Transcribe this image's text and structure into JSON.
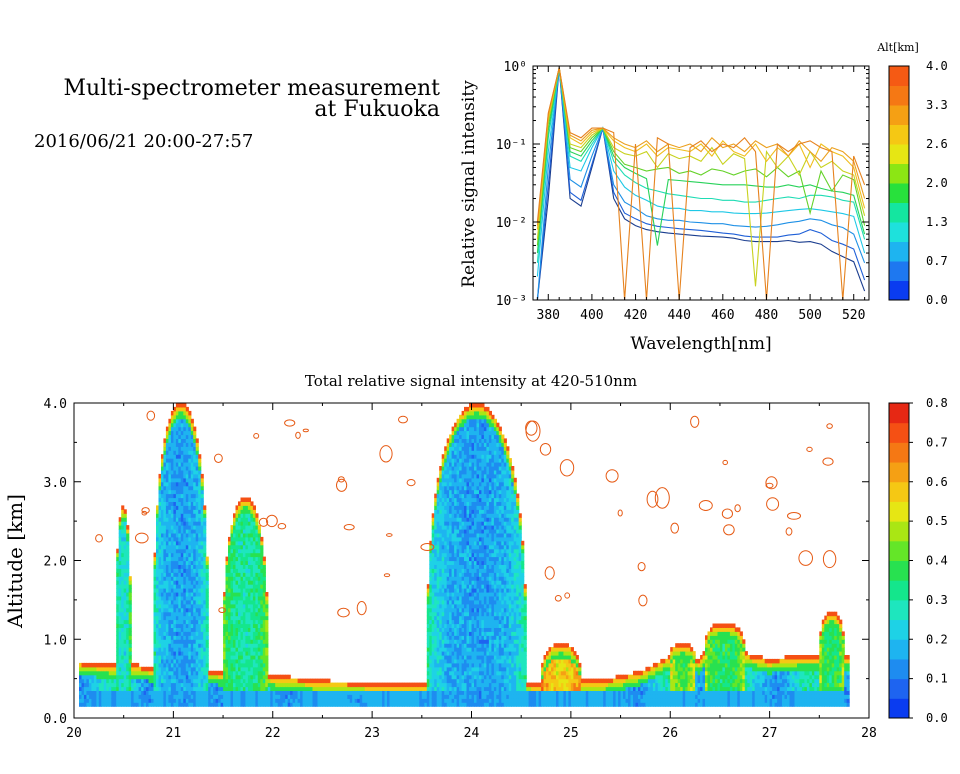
{
  "header": {
    "title_line1": "Multi-spectrometer measurement",
    "title_line2": "at Fukuoka",
    "datetime": "2016/06/21 20:00-27:57"
  },
  "chart_data": [
    {
      "type": "line",
      "title": "",
      "xlabel": "Wavelength[nm]",
      "ylabel": "Relative signal intensity",
      "xlim": [
        373,
        527
      ],
      "ylim": [
        0.001,
        1
      ],
      "yscale": "log",
      "xticks": [
        380,
        400,
        420,
        440,
        460,
        480,
        500,
        520
      ],
      "ytick_labels": [
        "10⁻³",
        "10⁻²",
        "10⁻¹",
        "10⁰"
      ],
      "grid": false,
      "colorbar": {
        "title": "Alt[km]",
        "ticks": [
          "0.0",
          "0.7",
          "1.3",
          "2.0",
          "2.6",
          "3.3",
          "4.0"
        ],
        "colors": [
          "#0A3CF0",
          "#1E78F0",
          "#1EB4F0",
          "#1EE1DC",
          "#14E6A0",
          "#28E13C",
          "#8CE614",
          "#E6E614",
          "#F5C814",
          "#F5A014",
          "#F57814",
          "#F55A14"
        ]
      },
      "wavelengths": [
        375,
        380,
        385,
        390,
        395,
        400,
        405,
        410,
        415,
        420,
        425,
        430,
        435,
        440,
        445,
        450,
        455,
        460,
        465,
        470,
        475,
        480,
        485,
        490,
        495,
        500,
        505,
        510,
        515,
        520,
        525
      ],
      "series": [
        {
          "alt": 0.2,
          "color": "#1A3D8F",
          "values": [
            0.001,
            0.02,
            0.95,
            0.02,
            0.016,
            0.05,
            0.16,
            0.02,
            0.011,
            0.009,
            0.008,
            0.0075,
            0.0072,
            0.007,
            0.0068,
            0.0066,
            0.0065,
            0.0064,
            0.0062,
            0.0058,
            0.0056,
            0.0056,
            0.0056,
            0.0058,
            0.0055,
            0.0056,
            0.0052,
            0.0042,
            0.0036,
            0.0031,
            0.0013
          ]
        },
        {
          "alt": 0.4,
          "color": "#1E5FD7",
          "values": [
            0.001,
            0.03,
            0.95,
            0.024,
            0.019,
            0.055,
            0.16,
            0.024,
            0.013,
            0.011,
            0.0095,
            0.0088,
            0.0085,
            0.0082,
            0.008,
            0.0078,
            0.0075,
            0.0072,
            0.007,
            0.0066,
            0.0064,
            0.0064,
            0.0064,
            0.0068,
            0.007,
            0.008,
            0.0072,
            0.0058,
            0.0052,
            0.0045,
            0.0018
          ]
        },
        {
          "alt": 0.7,
          "color": "#1E90E6",
          "values": [
            0.001,
            0.05,
            0.95,
            0.035,
            0.028,
            0.07,
            0.16,
            0.03,
            0.018,
            0.015,
            0.012,
            0.011,
            0.0105,
            0.0105,
            0.01,
            0.0098,
            0.0095,
            0.0095,
            0.009,
            0.0088,
            0.0086,
            0.0088,
            0.0092,
            0.0098,
            0.0102,
            0.011,
            0.0105,
            0.0092,
            0.0085,
            0.007,
            0.003
          ]
        },
        {
          "alt": 1.0,
          "color": "#1EC8E6",
          "values": [
            0.002,
            0.08,
            0.95,
            0.05,
            0.045,
            0.09,
            0.16,
            0.045,
            0.028,
            0.022,
            0.019,
            0.016,
            0.015,
            0.015,
            0.014,
            0.014,
            0.0135,
            0.0135,
            0.013,
            0.0128,
            0.0128,
            0.013,
            0.0135,
            0.014,
            0.0145,
            0.0148,
            0.0142,
            0.0135,
            0.0128,
            0.0118,
            0.004
          ]
        },
        {
          "alt": 1.3,
          "color": "#1EDCB4",
          "values": [
            0.003,
            0.12,
            0.95,
            0.07,
            0.06,
            0.1,
            0.16,
            0.06,
            0.04,
            0.032,
            0.027,
            0.025,
            0.023,
            0.022,
            0.021,
            0.02,
            0.02,
            0.019,
            0.019,
            0.018,
            0.018,
            0.019,
            0.02,
            0.021,
            0.02,
            0.022,
            0.022,
            0.021,
            0.019,
            0.018,
            0.006
          ]
        },
        {
          "alt": 1.7,
          "color": "#28D25A",
          "values": [
            0.004,
            0.15,
            0.95,
            0.08,
            0.07,
            0.11,
            0.16,
            0.07,
            0.05,
            0.042,
            0.036,
            0.005,
            0.035,
            0.034,
            0.033,
            0.032,
            0.031,
            0.03,
            0.03,
            0.03,
            0.029,
            0.028,
            0.028,
            0.03,
            0.028,
            0.03,
            0.027,
            0.025,
            0.024,
            0.022,
            0.007
          ]
        },
        {
          "alt": 2.1,
          "color": "#64D228",
          "values": [
            0.005,
            0.18,
            0.95,
            0.09,
            0.08,
            0.12,
            0.16,
            0.08,
            0.055,
            0.05,
            0.045,
            0.048,
            0.05,
            0.042,
            0.045,
            0.04,
            0.048,
            0.045,
            0.04,
            0.045,
            0.048,
            0.038,
            0.05,
            0.038,
            0.045,
            0.013,
            0.045,
            0.025,
            0.04,
            0.035,
            0.009
          ]
        },
        {
          "alt": 2.6,
          "color": "#C8D21E",
          "values": [
            0.006,
            0.2,
            0.95,
            0.1,
            0.09,
            0.13,
            0.16,
            0.09,
            0.075,
            0.07,
            0.08,
            0.05,
            0.075,
            0.065,
            0.07,
            0.06,
            0.09,
            0.055,
            0.075,
            0.065,
            0.0015,
            0.08,
            0.05,
            0.07,
            0.04,
            0.08,
            0.05,
            0.06,
            0.045,
            0.04,
            0.012
          ]
        },
        {
          "alt": 3.1,
          "color": "#F0BE1E",
          "values": [
            0.008,
            0.22,
            0.95,
            0.12,
            0.1,
            0.14,
            0.16,
            0.11,
            0.09,
            0.08,
            0.1,
            0.07,
            0.09,
            0.085,
            0.08,
            0.1,
            0.07,
            0.11,
            0.08,
            0.07,
            0.1,
            0.06,
            0.09,
            0.07,
            0.1,
            0.05,
            0.1,
            0.08,
            0.07,
            0.05,
            0.015
          ]
        },
        {
          "alt": 3.5,
          "color": "#EBA01E",
          "values": [
            0.009,
            0.24,
            0.95,
            0.13,
            0.11,
            0.15,
            0.16,
            0.12,
            0.1,
            0.09,
            0.11,
            0.08,
            0.1,
            0.09,
            0.1,
            0.08,
            0.12,
            0.09,
            0.1,
            0.08,
            0.11,
            0.09,
            0.1,
            0.07,
            0.11,
            0.08,
            0.06,
            0.09,
            0.08,
            0.06,
            0.02
          ]
        },
        {
          "alt": 3.9,
          "color": "#E6821E",
          "values": [
            0.01,
            0.25,
            0.95,
            0.14,
            0.12,
            0.16,
            0.16,
            0.14,
            0.001,
            0.1,
            0.001,
            0.12,
            0.1,
            0.001,
            0.09,
            0.11,
            0.08,
            0.1,
            0.09,
            0.12,
            0.08,
            0.001,
            0.1,
            0.08,
            0.1,
            0.11,
            0.09,
            0.08,
            0.001,
            0.07,
            0.03
          ]
        }
      ]
    },
    {
      "type": "heatmap",
      "title": "Total relative signal intensity at 420-510nm",
      "xlabel": "",
      "ylabel": "Altitude [km]",
      "xlim": [
        20,
        28
      ],
      "ylim": [
        0,
        4
      ],
      "xticks": [
        20,
        21,
        22,
        23,
        24,
        25,
        26,
        27,
        28
      ],
      "yticks": [
        0,
        1,
        2,
        3,
        4
      ],
      "ytick_labels": [
        "0.0",
        "1.0",
        "2.0",
        "3.0",
        "4.0"
      ],
      "data_extent": [
        20.05,
        27.8,
        0.15,
        4.0
      ],
      "colorbar": {
        "ticks": [
          "0.0",
          "0.1",
          "0.2",
          "0.3",
          "0.4",
          "0.5",
          "0.6",
          "0.7",
          "0.8"
        ],
        "colors": [
          "#0A3CF0",
          "#1E64F0",
          "#1E8CF0",
          "#1EB4F0",
          "#1ED2E6",
          "#1EE6BE",
          "#14E68C",
          "#28E150",
          "#64E628",
          "#AAE614",
          "#E6E614",
          "#F5C814",
          "#F5A014",
          "#F57814",
          "#F55014",
          "#E62814"
        ]
      },
      "background_boundary_km": [
        [
          20.0,
          0.72
        ],
        [
          20.3,
          0.7
        ],
        [
          20.45,
          0.68
        ],
        [
          20.5,
          0.72
        ],
        [
          20.7,
          0.66
        ],
        [
          20.9,
          0.64
        ],
        [
          21.3,
          0.62
        ],
        [
          21.5,
          0.6
        ],
        [
          21.8,
          0.62
        ],
        [
          22.0,
          0.55
        ],
        [
          22.5,
          0.48
        ],
        [
          23.0,
          0.45
        ],
        [
          23.5,
          0.44
        ],
        [
          23.7,
          0.48
        ],
        [
          24.0,
          0.48
        ],
        [
          24.5,
          0.46
        ],
        [
          24.7,
          0.45
        ],
        [
          25.0,
          0.5
        ],
        [
          25.3,
          0.48
        ],
        [
          25.7,
          0.6
        ],
        [
          26.0,
          0.8
        ],
        [
          26.3,
          0.75
        ],
        [
          26.5,
          1.2
        ],
        [
          26.7,
          0.85
        ],
        [
          27.0,
          0.75
        ],
        [
          27.3,
          0.8
        ],
        [
          27.6,
          0.8
        ],
        [
          27.8,
          0.8
        ]
      ],
      "features": [
        {
          "x0": 20.42,
          "x1": 20.57,
          "top": 2.7,
          "core": 0.25
        },
        {
          "x0": 20.8,
          "x1": 21.35,
          "top": 4.0,
          "core": 0.15
        },
        {
          "x0": 21.5,
          "x1": 21.95,
          "top": 2.8,
          "core": 0.3
        },
        {
          "x0": 23.55,
          "x1": 24.55,
          "top": 4.0,
          "core": 0.15
        },
        {
          "x0": 24.7,
          "x1": 25.1,
          "top": 0.95,
          "core": 0.55
        },
        {
          "x0": 26.35,
          "x1": 26.75,
          "top": 1.2,
          "core": 0.35
        },
        {
          "x0": 26.0,
          "x1": 26.25,
          "top": 0.95,
          "core": 0.4
        },
        {
          "x0": 27.5,
          "x1": 27.75,
          "top": 1.35,
          "core": 0.35
        }
      ]
    }
  ]
}
